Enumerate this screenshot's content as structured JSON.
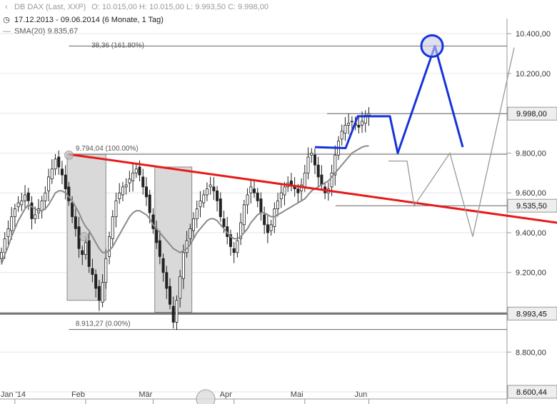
{
  "header": {
    "instrument": "DB DAX (Last, XXP)",
    "ohlc": "O: 10.015,00  H: 10.015,00  L: 9.993,50  C: 9.998,00",
    "range": "17.12.2013 - 09.06.2014 (6 Monate, 1 Tag)",
    "sma": "SMA(20)  9.835,67"
  },
  "colors": {
    "trendline": "#e8191a",
    "projection": "#1733d9",
    "sma": "#8a8a8a",
    "candle": "#222222",
    "box": "#d9d9d9",
    "support": "#777777"
  },
  "chart_data": {
    "type": "candlestick",
    "title": "",
    "xlabel": "",
    "ylabel": "",
    "x_ticks": [
      "Jan '14",
      "Feb",
      "Mär",
      "Apr",
      "Mai",
      "Jun"
    ],
    "y_ticks": [
      10400,
      10200,
      10000,
      9800,
      9600,
      9400,
      9200,
      9000,
      8800,
      8600
    ],
    "y_tick_labels": [
      "10.400,00",
      "10.200,00",
      "10.000,00",
      "9.800,00",
      "9.600,00",
      "9.400,00",
      "9.200,00",
      "9.000,00",
      "8.800,00",
      "8.600,00"
    ],
    "ylim": [
      8575,
      10440
    ],
    "price_labels": [
      {
        "label": "9.998,00",
        "value": 9998
      },
      {
        "label": "9.535,50",
        "value": 9535.5
      },
      {
        "label": "8.993,45",
        "value": 8993.45
      },
      {
        "label": "8.600,44",
        "value": 8600.44
      }
    ],
    "annotations": [
      {
        "text": "9.794,04 (100.00%)",
        "value": 9794.04
      },
      {
        "text": "8.913,27 (0.00%)",
        "value": 8913.27
      },
      {
        "text": "38,36 (161.80%)",
        "value": 10338
      }
    ],
    "support_level": 8993.45,
    "close": [
      9300,
      9370,
      9420,
      9480,
      9520,
      9550,
      9560,
      9590,
      9560,
      9470,
      9490,
      9520,
      9560,
      9600,
      9680,
      9720,
      9770,
      9730,
      9690,
      9620,
      9560,
      9480,
      9420,
      9320,
      9290,
      9350,
      9230,
      9190,
      9120,
      9060,
      9150,
      9270,
      9380,
      9480,
      9560,
      9600,
      9630,
      9640,
      9670,
      9700,
      9720,
      9690,
      9630,
      9580,
      9500,
      9420,
      9350,
      9280,
      9200,
      9120,
      9040,
      8950,
      9060,
      9180,
      9300,
      9360,
      9420,
      9470,
      9520,
      9560,
      9590,
      9620,
      9640,
      9610,
      9560,
      9480,
      9430,
      9380,
      9330,
      9300,
      9360,
      9450,
      9540,
      9590,
      9630,
      9600,
      9560,
      9500,
      9440,
      9400,
      9440,
      9520,
      9560,
      9600,
      9630,
      9650,
      9640,
      9620,
      9600,
      9640,
      9700,
      9780,
      9800,
      9740,
      9680,
      9640,
      9600,
      9620,
      9700,
      9790,
      9860,
      9910,
      9940,
      9950,
      9960,
      9940,
      9930,
      9960,
      9990,
      9998
    ],
    "sma20": [
      9240,
      9290,
      9330,
      9380,
      9420,
      9460,
      9490,
      9520,
      9540,
      9530,
      9520,
      9510,
      9510,
      9520,
      9540,
      9570,
      9600,
      9610,
      9610,
      9600,
      9580,
      9560,
      9530,
      9500,
      9460,
      9430,
      9410,
      9380,
      9350,
      9320,
      9300,
      9300,
      9310,
      9330,
      9360,
      9390,
      9420,
      9450,
      9480,
      9500,
      9510,
      9510,
      9500,
      9490,
      9470,
      9440,
      9420,
      9400,
      9380,
      9360,
      9340,
      9320,
      9310,
      9300,
      9310,
      9320,
      9340,
      9370,
      9400,
      9420,
      9440,
      9460,
      9470,
      9470,
      9460,
      9440,
      9420,
      9400,
      9380,
      9370,
      9370,
      9380,
      9400,
      9420,
      9450,
      9470,
      9490,
      9500,
      9500,
      9490,
      9480,
      9480,
      9490,
      9500,
      9510,
      9520,
      9530,
      9540,
      9550,
      9560,
      9570,
      9590,
      9610,
      9620,
      9630,
      9640,
      9650,
      9660,
      9680,
      9700,
      9720,
      9740,
      9760,
      9780,
      9800,
      9810,
      9820,
      9830,
      9835,
      9836
    ],
    "trendline": {
      "from": 9794,
      "to": 9450
    },
    "projection_note": "blue path: 9830 → 9825 → 9985 → 10000 → 9800 → 10338 → 9830",
    "grey_projection": [
      9760,
      9760,
      9535,
      9800,
      9380,
      10330
    ]
  }
}
